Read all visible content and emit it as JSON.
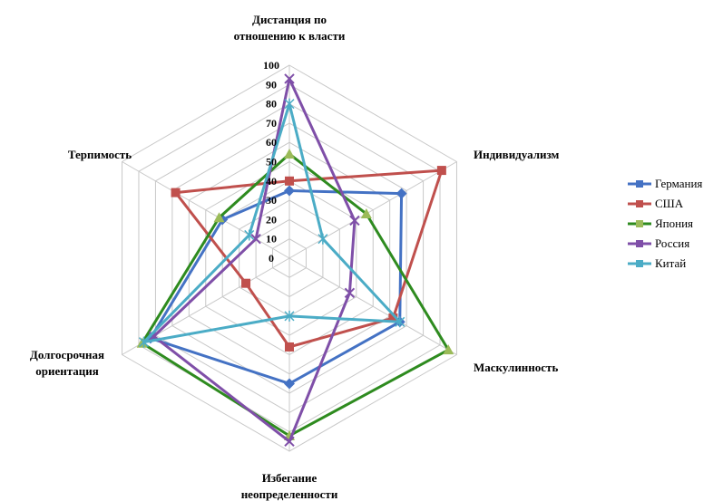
{
  "chart_data": {
    "type": "radar",
    "axes": [
      "Дистанция по отношению к власти",
      "Индивидуализм",
      "Маскулинность",
      "Избегание неопределенности",
      "Долгосрочная ориентация",
      "Терпимость"
    ],
    "axis_label_lines": [
      [
        "Дистанция по",
        "отношению к власти"
      ],
      [
        "Индивидуализм"
      ],
      [
        "Маскулинность"
      ],
      [
        "Избегание",
        "неопределенности"
      ],
      [
        "Долгосрочная",
        "ориентация"
      ],
      [
        "Терпимость"
      ]
    ],
    "rlim": [
      0,
      100
    ],
    "ticks": [
      "0",
      "10",
      "20",
      "30",
      "40",
      "50",
      "60",
      "70",
      "80",
      "90",
      "100"
    ],
    "series": [
      {
        "name": "Германия",
        "color": "#4472C4",
        "marker": "diamond",
        "values": [
          35,
          67,
          66,
          65,
          83,
          40
        ]
      },
      {
        "name": "США",
        "color": "#C0504D",
        "marker": "square",
        "values": [
          40,
          91,
          62,
          46,
          26,
          68
        ]
      },
      {
        "name": "Япония",
        "color": "#2E8B1F",
        "marker": "triangle",
        "values": [
          54,
          46,
          95,
          92,
          88,
          42
        ]
      },
      {
        "name": "Россия",
        "color": "#7F4FA8",
        "marker": "x",
        "values": [
          93,
          39,
          36,
          95,
          81,
          20
        ]
      },
      {
        "name": "Китай",
        "color": "#4BACC6",
        "marker": "star",
        "values": [
          80,
          20,
          66,
          30,
          87,
          24
        ]
      }
    ]
  }
}
